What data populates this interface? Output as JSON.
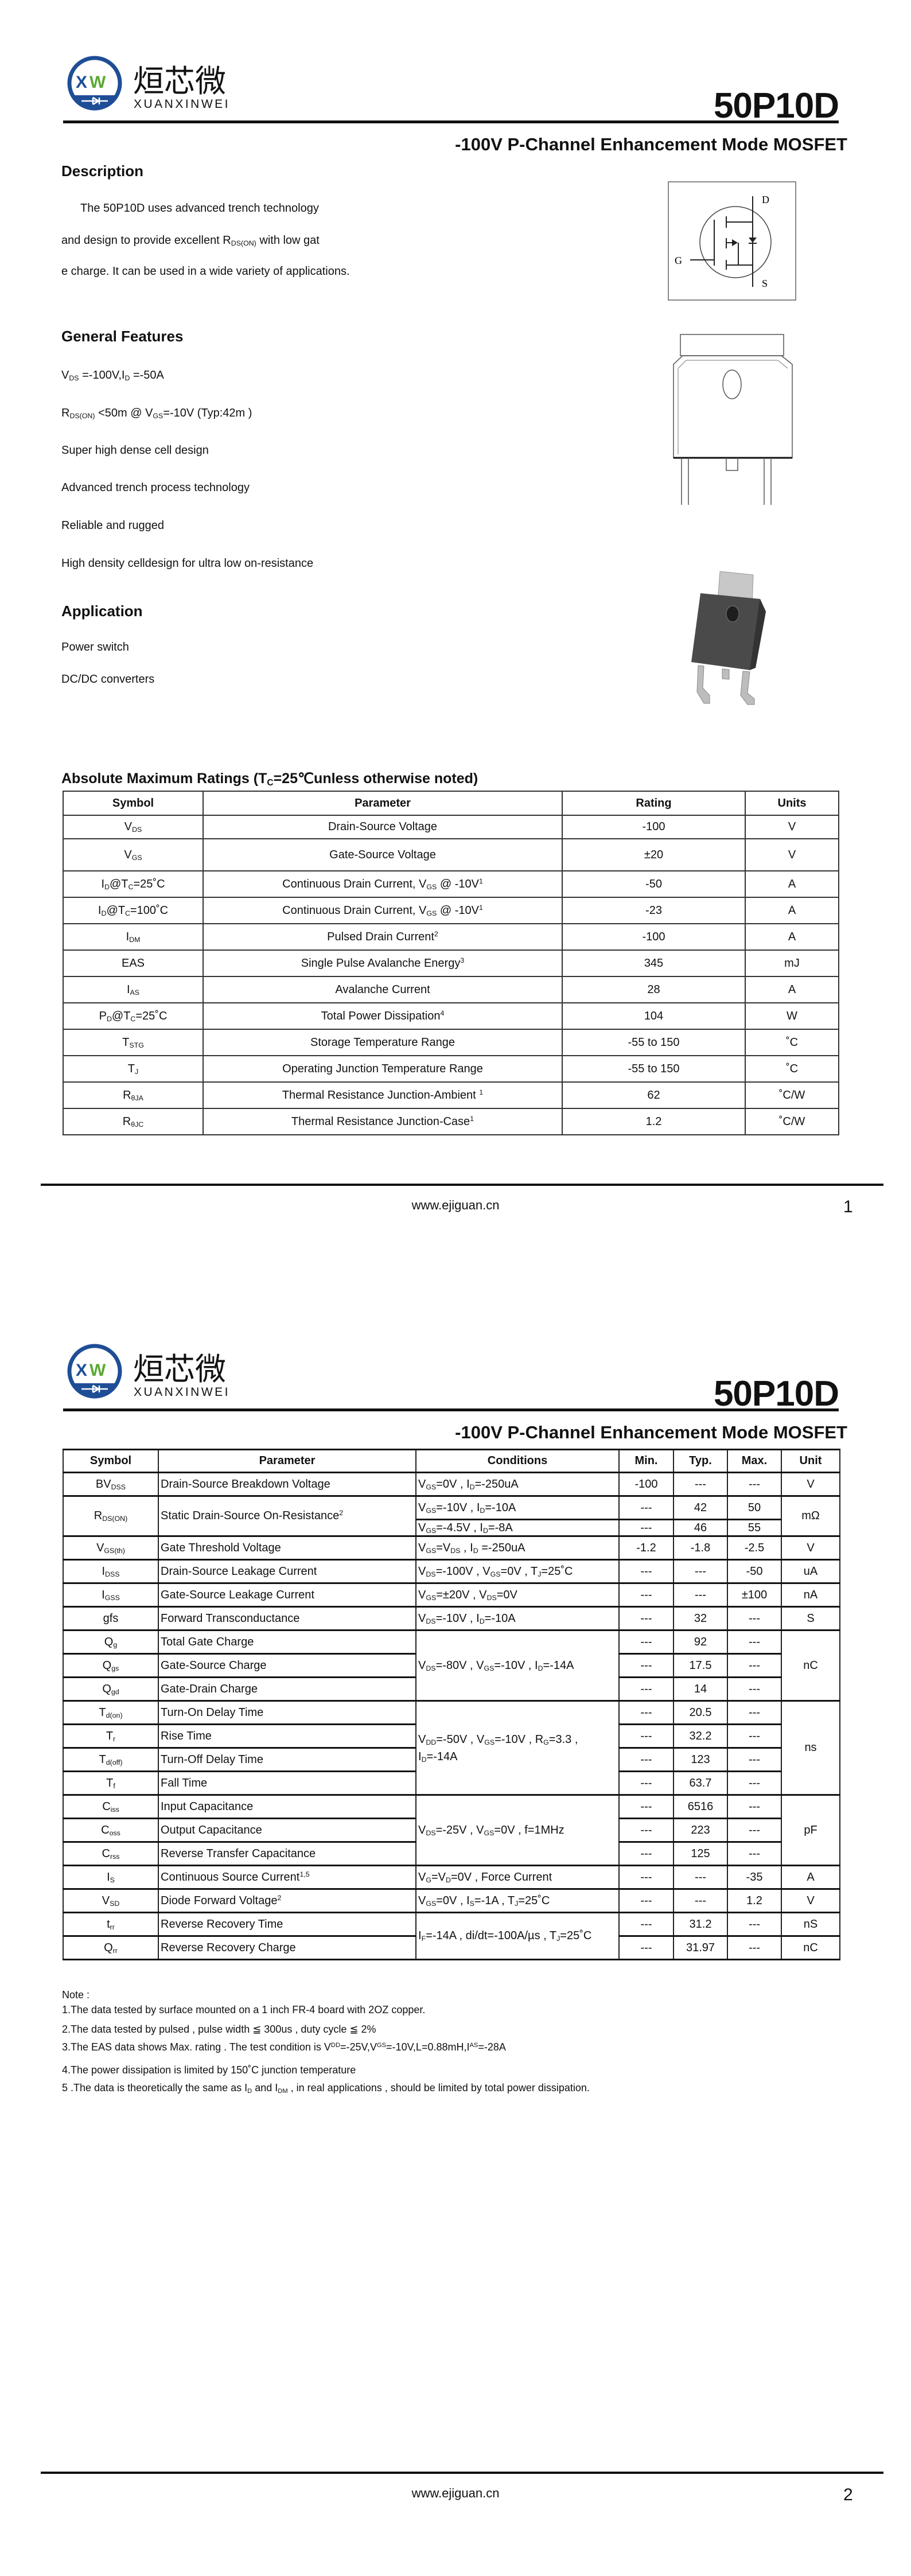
{
  "header": {
    "logo_text": "烜芯微",
    "logo_subtext": "XUANXINWEI",
    "logo_letters": "XW",
    "part_number": "50P10D",
    "subtitle": "-100V P-Channel Enhancement Mode MOSFET",
    "colors": {
      "logo_blue": "#1f4e96",
      "logo_green": "#5aa832"
    }
  },
  "description": {
    "heading": "Description",
    "lines": [
      [
        "The 50P10D uses advanced trench technology"
      ],
      [
        "and design to provide excellent R",
        {
          "sub": "DS(ON)"
        },
        " with low gat"
      ],
      [
        "e charge. It can be used in a wide variety of applications."
      ]
    ]
  },
  "schematic": {
    "labels": {
      "drain": "D",
      "gate": "G",
      "source": "S"
    }
  },
  "features": {
    "heading": "General Features",
    "items": [
      [
        "V",
        {
          "sub": "DS"
        },
        " =-100V,I",
        {
          "sub": "D"
        },
        " =-50A"
      ],
      [
        "R",
        {
          "sub": "DS(ON)"
        },
        " <50m @ V",
        {
          "sub": "GS"
        },
        "=-10V  (Typ:42m )"
      ],
      [
        "Super high dense cell design"
      ],
      [
        "Advanced trench process technology"
      ],
      [
        "Reliable and rugged"
      ],
      [
        "High density celldesign for ultra low on-resistance"
      ]
    ]
  },
  "application": {
    "heading": "Application",
    "items": [
      "Power switch",
      "DC/DC converters"
    ]
  },
  "abs_max": {
    "title": [
      "Absolute Maximum Ratings (T",
      {
        "sub": "C"
      },
      "=25℃unless otherwise noted)"
    ],
    "columns": [
      "Symbol",
      "Parameter",
      "Rating",
      "Units"
    ],
    "rows": [
      [
        [
          "V",
          {
            "sub": "DS"
          }
        ],
        "Drain-Source Voltage",
        "-100",
        "V"
      ],
      [
        [
          "V",
          {
            "sub": "GS"
          }
        ],
        "Gate-Source Voltage",
        "±20",
        "V"
      ],
      [
        [
          "I",
          {
            "sub": "D"
          },
          "@T",
          {
            "sub": "C"
          },
          "=25˚C"
        ],
        [
          "Continuous Drain Current, V",
          {
            "sub": "GS"
          },
          " @ -10V",
          {
            "sup": "1"
          }
        ],
        "-50",
        "A"
      ],
      [
        [
          "I",
          {
            "sub": "D"
          },
          "@T",
          {
            "sub": "C"
          },
          "=100˚C"
        ],
        [
          "Continuous Drain Current, V",
          {
            "sub": "GS"
          },
          " @ -10V",
          {
            "sup": "1"
          }
        ],
        "-23",
        "A"
      ],
      [
        [
          "I",
          {
            "sub": "DM"
          }
        ],
        [
          "Pulsed Drain Current",
          {
            "sup": "2"
          }
        ],
        "-100",
        "A"
      ],
      [
        "EAS",
        [
          "Single Pulse Avalanche Energy",
          {
            "sup": "3"
          }
        ],
        "345",
        "mJ"
      ],
      [
        [
          "I",
          {
            "sub": "AS"
          }
        ],
        "Avalanche Current",
        "28",
        "A"
      ],
      [
        [
          "P",
          {
            "sub": "D"
          },
          "@T",
          {
            "sub": "C"
          },
          "=25˚C"
        ],
        [
          "Total Power Dissipation",
          {
            "sup": "4"
          }
        ],
        "104",
        "W"
      ],
      [
        [
          "T",
          {
            "sub": "STG"
          }
        ],
        "Storage Temperature Range",
        "-55 to 150",
        "˚C"
      ],
      [
        [
          "T",
          {
            "sub": "J"
          }
        ],
        "Operating Junction Temperature Range",
        "-55 to 150",
        "˚C"
      ],
      [
        [
          "R",
          {
            "sub": "θJA"
          }
        ],
        [
          "Thermal Resistance Junction-Ambient ",
          {
            "sup": "1"
          }
        ],
        "62",
        "˚C/W"
      ],
      [
        [
          "R",
          {
            "sub": "θJC"
          }
        ],
        [
          "Thermal Resistance Junction-Case",
          {
            "sup": "1"
          }
        ],
        "1.2",
        "˚C/W"
      ]
    ]
  },
  "electrical": {
    "columns": [
      "Symbol",
      "Parameter",
      "Conditions",
      "Min.",
      "Typ.",
      "Max.",
      "Unit"
    ],
    "rows": [
      [
        [
          "BV",
          {
            "sub": "DSS"
          }
        ],
        "Drain-Source Breakdown Voltage",
        [
          "V",
          {
            "sub": "GS"
          },
          "=0V , I",
          {
            "sub": "D"
          },
          "=-250uA"
        ],
        "-100",
        "---",
        "---",
        "V"
      ],
      [
        [
          "R",
          {
            "sub": "DS(ON)"
          }
        ],
        [
          "Static Drain-Source On-Resistance",
          {
            "sup": "2"
          }
        ],
        [
          "V",
          {
            "sub": "GS"
          },
          "=-10V , I",
          {
            "sub": "D"
          },
          "=-10A"
        ],
        "---",
        "42",
        "50",
        "mΩ"
      ],
      [
        null,
        null,
        [
          "V",
          {
            "sub": "GS"
          },
          "=-4.5V , I",
          {
            "sub": "D"
          },
          "=-8A"
        ],
        "---",
        "46",
        "55",
        null
      ],
      [
        [
          "V",
          {
            "sub": "GS(th)"
          }
        ],
        "Gate Threshold Voltage",
        [
          "V",
          {
            "sub": "GS"
          },
          "=V",
          {
            "sub": "DS"
          },
          " , I",
          {
            "sub": "D"
          },
          " =-250uA"
        ],
        "-1.2",
        "-1.8",
        "-2.5",
        "V"
      ],
      [
        [
          "I",
          {
            "sub": "DSS"
          }
        ],
        "Drain-Source Leakage Current",
        [
          "V",
          {
            "sub": "DS"
          },
          "=-100V , V",
          {
            "sub": "GS"
          },
          "=0V , T",
          {
            "sub": "J"
          },
          "=25˚C"
        ],
        "---",
        "---",
        "-50",
        "uA"
      ],
      [
        [
          "I",
          {
            "sub": "GSS"
          }
        ],
        "Gate-Source Leakage Current",
        [
          "V",
          {
            "sub": "GS"
          },
          "=±20V , V",
          {
            "sub": "DS"
          },
          "=0V"
        ],
        "---",
        "---",
        "±100",
        "nA"
      ],
      [
        "gfs",
        "Forward Transconductance",
        [
          "V",
          {
            "sub": "DS"
          },
          "=-10V , I",
          {
            "sub": "D"
          },
          "=-10A"
        ],
        "---",
        "32",
        "---",
        "S"
      ],
      [
        [
          "Q",
          {
            "sub": "g"
          }
        ],
        "Total Gate Charge",
        [
          "V",
          {
            "sub": "DS"
          },
          "=-80V , V",
          {
            "sub": "GS"
          },
          "=-10V , I",
          {
            "sub": "D"
          },
          "=-14A"
        ],
        "---",
        "92",
        "---",
        "nC"
      ],
      [
        [
          "Q",
          {
            "sub": "gs"
          }
        ],
        "Gate-Source Charge",
        null,
        "---",
        "17.5",
        "---",
        null
      ],
      [
        [
          "Q",
          {
            "sub": "gd"
          }
        ],
        "Gate-Drain Charge",
        null,
        "---",
        "14",
        "---",
        null
      ],
      [
        [
          "T",
          {
            "sub": "d(on)"
          }
        ],
        "Turn-On Delay Time",
        [
          "V",
          {
            "sub": "DD"
          },
          "=-50V , V",
          {
            "sub": "GS"
          },
          "=-10V , R",
          {
            "sub": "G"
          },
          "=3.3 , I",
          {
            "sub": "D"
          },
          "=-14A"
        ],
        "---",
        "20.5",
        "---",
        "ns"
      ],
      [
        [
          "T",
          {
            "sub": "r"
          }
        ],
        "Rise Time",
        null,
        "---",
        "32.2",
        "---",
        null
      ],
      [
        [
          "T",
          {
            "sub": "d(off)"
          }
        ],
        "Turn-Off Delay Time",
        null,
        "---",
        "123",
        "---",
        null
      ],
      [
        [
          "T",
          {
            "sub": "f"
          }
        ],
        "Fall Time",
        null,
        "---",
        "63.7",
        "---",
        null
      ],
      [
        [
          "C",
          {
            "sub": "iss"
          }
        ],
        "Input Capacitance",
        [
          "V",
          {
            "sub": "DS"
          },
          "=-25V , V",
          {
            "sub": "GS"
          },
          "=0V , f=1MHz"
        ],
        "---",
        "6516",
        "---",
        "pF"
      ],
      [
        [
          "C",
          {
            "sub": "oss"
          }
        ],
        "Output Capacitance",
        null,
        "---",
        "223",
        "---",
        null
      ],
      [
        [
          "C",
          {
            "sub": "rss"
          }
        ],
        "Reverse Transfer Capacitance",
        null,
        "---",
        "125",
        "---",
        null
      ],
      [
        [
          "I",
          {
            "sub": "S"
          }
        ],
        [
          "Continuous Source Current",
          {
            "sup": "1,5"
          }
        ],
        [
          "V",
          {
            "sub": "G"
          },
          "=V",
          {
            "sub": "D"
          },
          "=0V , Force Current"
        ],
        "---",
        "---",
        "-35",
        "A"
      ],
      [
        [
          "V",
          {
            "sub": "SD"
          }
        ],
        [
          "Diode Forward Voltage",
          {
            "sup": "2"
          }
        ],
        [
          "V",
          {
            "sub": "GS"
          },
          "=0V , I",
          {
            "sub": "S"
          },
          "=-1A , T",
          {
            "sub": "J"
          },
          "=25˚C"
        ],
        "---",
        "---",
        "1.2",
        "V"
      ],
      [
        [
          "t",
          {
            "sub": "rr"
          }
        ],
        "Reverse Recovery Time",
        [
          "I",
          {
            "sub": "F"
          },
          "=-14A , di/dt=-100A/µs , T",
          {
            "sub": "J"
          },
          "=25˚C"
        ],
        "---",
        "31.2",
        "---",
        "nS"
      ],
      [
        [
          "Q",
          {
            "sub": "rr"
          }
        ],
        "Reverse Recovery Charge",
        null,
        "---",
        "31.97",
        "---",
        "nC"
      ]
    ]
  },
  "notes": {
    "heading": "Note :",
    "items": [
      [
        "1.The data tested by surface mounted on a 1 inch FR-4 board with 2OZ copper."
      ],
      [
        "2.The data tested by pulsed , pulse width ≦ 300us , duty cycle ≦ 2%"
      ],
      [
        "3.The EAS data shows Max. rating . The test condition is V",
        {
          "sup": "DD"
        },
        "=-25V,V",
        {
          "sup": "GS"
        },
        "=-10V,L=0.88mH,I",
        {
          "sup": "AS"
        },
        "=-28A"
      ],
      [
        "4.The power dissipation is limited by 150˚C junction temperature"
      ],
      [
        " 5 .The data is theoretically the same as I",
        {
          "sub": "D"
        },
        " and I",
        {
          "sub": "DM"
        },
        " , in real applications , should be limited by total power dissipation."
      ]
    ]
  },
  "footer": {
    "url": "www.ejiguan.cn",
    "pages": [
      "1",
      "2"
    ]
  }
}
